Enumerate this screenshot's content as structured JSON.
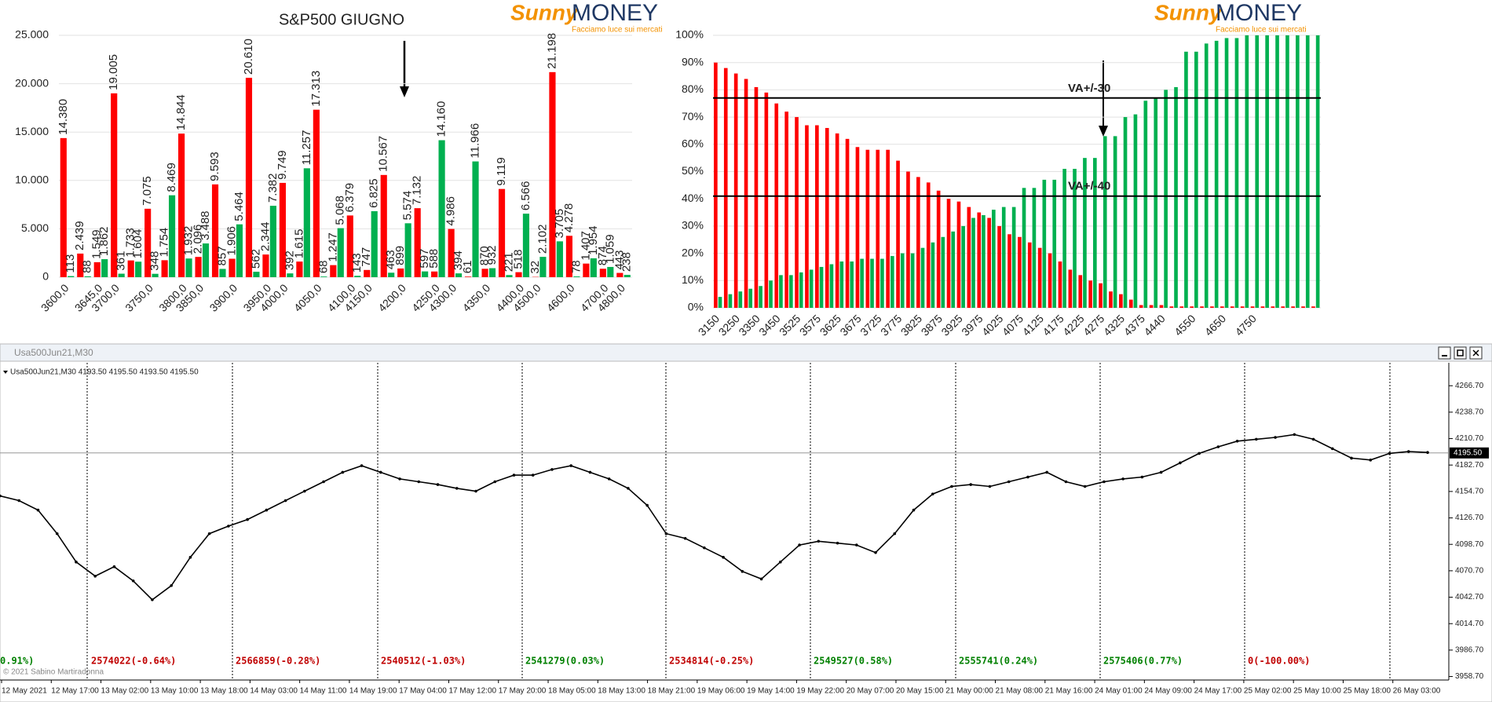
{
  "logos": [
    {
      "brand": "Sunny",
      "name": "MONEY",
      "tagline": "Facciamo luce sui mercati"
    },
    {
      "brand": "Sunny",
      "name": "MONEY",
      "tagline": "Facciamo luce sui mercati"
    }
  ],
  "chart_data": [
    {
      "type": "bar",
      "title": "S&P500 GIUGNO",
      "categories": [
        "3600,0",
        null,
        "3645,0",
        "3700,0",
        null,
        "3750,0",
        null,
        "3800,0",
        "3850,0",
        null,
        "3900,0",
        null,
        "3950,0",
        "4000,0",
        null,
        "4050,0",
        null,
        "4100,0",
        "4150,0",
        null,
        "4200,0",
        null,
        "4250,0",
        "4300,0",
        null,
        "4350,0",
        null,
        "4400,0",
        "4500,0",
        null,
        "4600,0",
        null,
        "4700,0",
        "4800,0"
      ],
      "series": [
        {
          "color": "#ff0000",
          "values": [
            14380,
            2439,
            1549,
            19005,
            1733,
            7075,
            1754,
            14844,
            2096,
            9593,
            1906,
            20610,
            2344,
            9749,
            1615,
            17313,
            1247,
            6379,
            747,
            10567,
            899,
            7132,
            588,
            4986,
            61,
            870,
            9119,
            518,
            32,
            21198,
            4278,
            1407,
            874,
            443
          ],
          "value_labels": [
            "14.380",
            "2.439",
            "1.549",
            "19.005",
            "1.733",
            "7.075",
            "1.754",
            "14.844",
            "2.096",
            "9.593",
            "1.906",
            "20.610",
            "2.344",
            "9.749",
            "1.615",
            "17.313",
            "1.247",
            "6.379",
            "747",
            "10.567",
            "899",
            "7.132",
            "588",
            "4.986",
            "61",
            "870",
            "9.119",
            "518",
            "32",
            "21.198",
            "4.278",
            "1.407",
            "874",
            "443"
          ]
        },
        {
          "color": "#00b050",
          "values": [
            113,
            88,
            1862,
            361,
            1604,
            348,
            8469,
            1932,
            3488,
            857,
            5464,
            562,
            7382,
            392,
            11257,
            68,
            5068,
            143,
            6825,
            463,
            5574,
            597,
            14160,
            394,
            11966,
            932,
            221,
            6566,
            2102,
            3705,
            78,
            1954,
            1059,
            238
          ],
          "value_labels": [
            "113",
            "88",
            "1.862",
            "361",
            "1.604",
            "348",
            "8.469",
            "1.932",
            "3.488",
            "857",
            "5.464",
            "562",
            "7.382",
            "392",
            "11.257",
            "68",
            "5.068",
            "143",
            "6.825",
            "463",
            "5.574",
            "597",
            "14.160",
            "394",
            "11.966",
            "932",
            "221",
            "6.566",
            "2.102",
            "3.705",
            "78",
            "1.954",
            "1.059",
            "238"
          ]
        }
      ],
      "ylim": [
        0,
        25000
      ],
      "yticks": [
        0,
        {
          "value": 5000,
          "label": "5.000"
        },
        {
          "value": 10000,
          "label": "10.000"
        },
        {
          "value": 15000,
          "label": "15.000"
        },
        {
          "value": 20000,
          "label": "20.000"
        },
        {
          "value": 25000,
          "label": "25.000"
        }
      ],
      "grid": true
    },
    {
      "type": "bar",
      "categories": [
        "3150",
        null,
        "3250",
        null,
        "3350",
        null,
        "3450",
        null,
        "3525",
        null,
        "3575",
        null,
        "3625",
        null,
        "3675",
        null,
        "3725",
        null,
        "3775",
        null,
        "3825",
        null,
        "3875",
        null,
        "3925",
        null,
        "3975",
        null,
        "4025",
        null,
        "4075",
        null,
        "4125",
        null,
        "4175",
        null,
        "4225",
        null,
        "4275",
        null,
        "4325",
        null,
        "4375",
        null,
        "4440",
        null,
        null,
        "4550",
        null,
        null,
        "4650",
        null,
        null,
        "4750",
        null,
        null,
        null,
        null,
        null,
        null
      ],
      "series": [
        {
          "color": "#ff0000",
          "values": [
            90,
            88,
            86,
            84,
            81,
            79,
            75,
            72,
            70,
            67,
            67,
            66,
            64,
            62,
            59,
            58,
            58,
            58,
            54,
            50,
            48,
            46,
            43,
            40,
            39,
            37,
            35,
            33,
            30,
            27,
            26,
            24,
            22,
            20,
            17,
            14,
            12,
            10,
            9,
            6,
            5,
            3,
            1,
            1,
            1,
            0.5,
            0.5,
            0.5,
            0.5,
            0.5,
            0.5,
            0.5,
            0.5,
            0.5,
            0.5,
            0.5,
            0.5,
            0.5,
            0.5,
            0.5
          ]
        },
        {
          "color": "#00b050",
          "values": [
            4,
            5,
            6,
            7,
            8,
            10,
            12,
            12,
            13,
            14,
            15,
            16,
            17,
            17,
            18,
            18,
            18,
            19,
            20,
            20,
            22,
            24,
            26,
            28,
            30,
            33,
            34,
            36,
            37,
            37,
            44,
            44,
            47,
            47,
            51,
            51,
            55,
            55,
            63,
            63,
            70,
            71,
            76,
            77,
            80,
            81,
            94,
            94,
            97,
            98,
            99,
            99,
            100,
            100,
            100,
            100,
            100,
            100,
            100,
            100
          ]
        }
      ],
      "ylim": [
        0,
        100
      ],
      "yticks": [
        {
          "value": 0,
          "label": "0%"
        },
        {
          "value": 10,
          "label": "10%"
        },
        {
          "value": 20,
          "label": "20%"
        },
        {
          "value": 30,
          "label": "30%"
        },
        {
          "value": 40,
          "label": "40%"
        },
        {
          "value": 50,
          "label": "50%"
        },
        {
          "value": 60,
          "label": "60%"
        },
        {
          "value": 70,
          "label": "70%"
        },
        {
          "value": 80,
          "label": "80%"
        },
        {
          "value": 90,
          "label": "90%"
        },
        {
          "value": 100,
          "label": "100%"
        }
      ],
      "grid": true,
      "lines": [
        {
          "label": "VA+/-30",
          "value": 77
        },
        {
          "label": "VA+/-40",
          "value": 41
        }
      ]
    },
    {
      "type": "line",
      "title": "Usa500Jun21,M30",
      "info": "Usa500Jun21,M30  4193.50 4195.50 4193.50 4195.50",
      "copyright": "© 2021 Sabino Martiradonna",
      "color": "#000000",
      "values": [
        4150,
        4145,
        4135,
        4110,
        4080,
        4065,
        4075,
        4060,
        4040,
        4055,
        4085,
        4110,
        4118,
        4125,
        4135,
        4145,
        4155,
        4165,
        4175,
        4182,
        4175,
        4168,
        4165,
        4162,
        4158,
        4155,
        4165,
        4172,
        4172,
        4178,
        4182,
        4175,
        4168,
        4158,
        4140,
        4110,
        4105,
        4095,
        4085,
        4070,
        4062,
        4080,
        4098,
        4102,
        4100,
        4098,
        4090,
        4110,
        4135,
        4152,
        4160,
        4162,
        4160,
        4165,
        4170,
        4175,
        4165,
        4160,
        4165,
        4168,
        4170,
        4175,
        4185,
        4195,
        4202,
        4208,
        4210,
        4212,
        4215,
        4210,
        4200,
        4190,
        4188,
        4195,
        4197,
        4196
      ],
      "ylim": [
        3955,
        4291
      ],
      "yticks": [
        {
          "value": 4266.7,
          "label": "4266.70"
        },
        {
          "value": 4238.7,
          "label": "4238.70"
        },
        {
          "value": 4210.7,
          "label": "4210.70"
        },
        {
          "value": 4182.7,
          "label": "4182.70"
        },
        {
          "value": 4154.7,
          "label": "4154.70"
        },
        {
          "value": 4126.7,
          "label": "4126.70"
        },
        {
          "value": 4098.7,
          "label": "4098.70"
        },
        {
          "value": 4070.7,
          "label": "4070.70"
        },
        {
          "value": 4042.7,
          "label": "4042.70"
        },
        {
          "value": 4014.7,
          "label": "4014.70"
        },
        {
          "value": 3986.7,
          "label": "3986.70"
        },
        {
          "value": 3958.7,
          "label": "3958.70"
        }
      ],
      "last_price": {
        "value": 4195.5,
        "label": "4195.50"
      },
      "time_labels": [
        "12 May 2021",
        "12 May 17:00",
        "13 May 02:00",
        "13 May 10:00",
        "13 May 18:00",
        "14 May 03:00",
        "14 May 11:00",
        "14 May 19:00",
        "17 May 04:00",
        "17 May 12:00",
        "17 May 20:00",
        "18 May 05:00",
        "18 May 13:00",
        "18 May 21:00",
        "19 May 06:00",
        "19 May 14:00",
        "19 May 22:00",
        "20 May 07:00",
        "20 May 15:00",
        "21 May 00:00",
        "21 May 08:00",
        "21 May 16:00",
        "24 May 01:00",
        "24 May 09:00",
        "24 May 17:00",
        "25 May 02:00",
        "25 May 10:00",
        "25 May 18:00",
        "26 May 03:00"
      ],
      "sessions": [
        {
          "label": "0.91%)",
          "color": "#008000"
        },
        {
          "label": "2574022(-0.64%)",
          "color": "#c00000"
        },
        {
          "label": "2566859(-0.28%)",
          "color": "#c00000"
        },
        {
          "label": "2540512(-1.03%)",
          "color": "#c00000"
        },
        {
          "label": "2541279(0.03%)",
          "color": "#008000"
        },
        {
          "label": "2534814(-0.25%)",
          "color": "#c00000"
        },
        {
          "label": "2549527(0.58%)",
          "color": "#008000"
        },
        {
          "label": "2555741(0.24%)",
          "color": "#008000"
        },
        {
          "label": "2575406(0.77%)",
          "color": "#008000"
        },
        {
          "label": "0(-100.00%)",
          "color": "#c00000"
        }
      ]
    }
  ]
}
